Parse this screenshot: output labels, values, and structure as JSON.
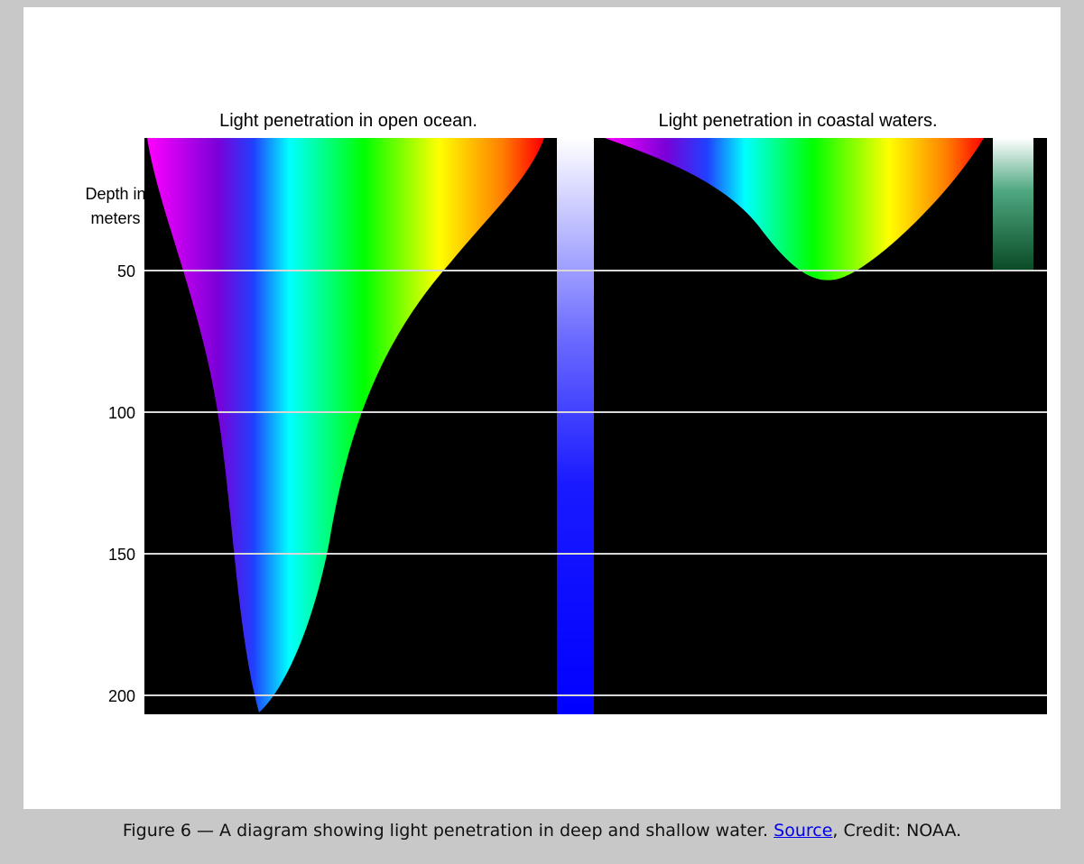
{
  "figure": {
    "panels": [
      {
        "title": "Light penetration in open ocean."
      },
      {
        "title": "Light penetration in coastal waters."
      }
    ],
    "depth_label": [
      "Depth in",
      "meters"
    ],
    "depth_ticks": [
      50,
      100,
      150,
      200
    ]
  },
  "caption": {
    "text": "Figure 6 — A diagram showing light penetration in deep and shallow water.",
    "link": "Source",
    "credit": ", Credit: NOAA."
  }
}
